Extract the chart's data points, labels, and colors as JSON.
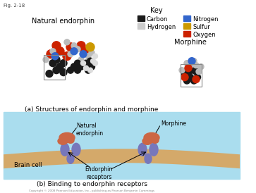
{
  "fig_label": "Fig. 2-18",
  "title_a": "(a) Structures of endorphin and morphine",
  "title_b": "(b) Binding to endorphin receptors",
  "key_title": "Key",
  "key_items": [
    {
      "label": "Carbon",
      "color": "#1a1a1a"
    },
    {
      "label": "Hydrogen",
      "color": "#cccccc"
    },
    {
      "label": "Nitrogen",
      "color": "#3366cc"
    },
    {
      "label": "Sulfur",
      "color": "#cc9900"
    },
    {
      "label": "Oxygen",
      "color": "#cc2200"
    }
  ],
  "label_endorphin": "Natural endorphin",
  "label_morphine": "Morphine",
  "label_natural_endorphin2": "Natural\nendorphin",
  "label_morphine2": "Morphine",
  "label_brain": "Brain cell",
  "label_receptors": "Endorphin\nreceptors",
  "bg_color": "#ffffff",
  "panel_b_bg": "#aaddee",
  "membrane_color": "#d4a96a",
  "receptor_color": "#7777bb",
  "molecule_color": "#cc6644"
}
